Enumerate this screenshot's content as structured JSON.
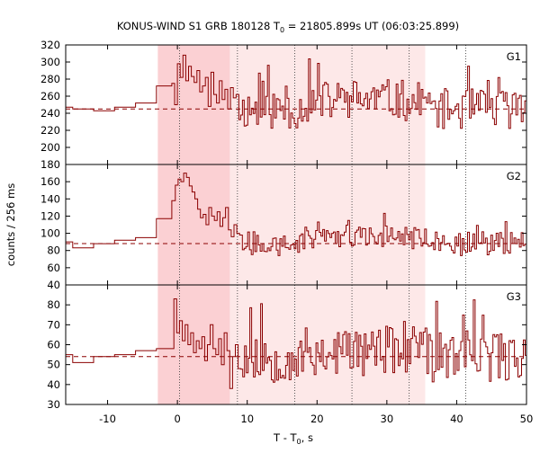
{
  "chart_data": {
    "type": "line",
    "title": "KONUS-WIND S1 GRB 180128 T",
    "title_sub": "0",
    "title_rest": " = 21805.899s UT (06:03:25.899)",
    "xlabel_main": "T - T",
    "xlabel_sub": "0",
    "xlabel_end": ", s",
    "ylabel": "counts / 256 ms",
    "xlim": [
      -16,
      50
    ],
    "x_ticks": [
      -10,
      0,
      10,
      20,
      30,
      40,
      50
    ],
    "shaded_intervals": [
      {
        "from": -2.8,
        "to": 35.5,
        "color": "#fde8e8"
      },
      {
        "from": -2.8,
        "to": 7.5,
        "color": "#fbd0d3"
      }
    ],
    "dotted_verticals": [
      0.3,
      8.6,
      16.8,
      25.0,
      33.2,
      41.3
    ],
    "line_color": "#8b0000",
    "panels": [
      {
        "label": "G1",
        "ylim": [
          180,
          320
        ],
        "y_ticks": [
          200,
          220,
          240,
          260,
          280,
          300,
          320
        ],
        "background": 245,
        "pre_burst": [
          {
            "x0": -16,
            "x1": -15,
            "y": 247
          },
          {
            "x0": -15,
            "x1": -12,
            "y": 245
          },
          {
            "x0": -12,
            "x1": -9,
            "y": 243
          },
          {
            "x0": -9,
            "x1": -6,
            "y": 247
          },
          {
            "x0": -6,
            "x1": -3,
            "y": 252
          },
          {
            "x0": -3,
            "x1": -0.8,
            "y": 272
          }
        ],
        "peak": [
          275,
          250,
          298,
          282,
          308,
          278,
          295,
          283,
          276,
          290,
          265,
          272,
          282,
          248,
          288,
          262,
          252,
          278,
          256,
          268,
          245,
          270,
          258,
          262
        ],
        "noise_amp": 24,
        "late_bump": 12,
        "seed": 11
      },
      {
        "label": "G2",
        "ylim": [
          40,
          180
        ],
        "y_ticks": [
          40,
          60,
          80,
          100,
          120,
          140,
          160,
          180
        ],
        "background": 88,
        "pre_burst": [
          {
            "x0": -16,
            "x1": -15,
            "y": 90
          },
          {
            "x0": -15,
            "x1": -12,
            "y": 83
          },
          {
            "x0": -12,
            "x1": -9,
            "y": 88
          },
          {
            "x0": -9,
            "x1": -6,
            "y": 92
          },
          {
            "x0": -6,
            "x1": -3,
            "y": 95
          },
          {
            "x0": -3,
            "x1": -0.8,
            "y": 117
          },
          {
            "x0": -0.8,
            "x1": -0.3,
            "y": 138
          }
        ],
        "peak": [
          156,
          163,
          160,
          170,
          165,
          155,
          148,
          140,
          128,
          118,
          122,
          110,
          130,
          120,
          115,
          125,
          108,
          118,
          130,
          104,
          96,
          110,
          100,
          98
        ],
        "noise_amp": 14,
        "late_bump": 10,
        "seed": 27
      },
      {
        "label": "G3",
        "ylim": [
          30,
          90
        ],
        "y_ticks": [
          30,
          40,
          50,
          60,
          70,
          80
        ],
        "background": 54,
        "pre_burst": [
          {
            "x0": -16,
            "x1": -15,
            "y": 55
          },
          {
            "x0": -15,
            "x1": -12,
            "y": 51
          },
          {
            "x0": -12,
            "x1": -9,
            "y": 54
          },
          {
            "x0": -9,
            "x1": -6,
            "y": 55
          },
          {
            "x0": -6,
            "x1": -3,
            "y": 57
          },
          {
            "x0": -3,
            "x1": -0.5,
            "y": 58
          }
        ],
        "peak": [
          83,
          66,
          72,
          62,
          70,
          60,
          66,
          56,
          62,
          58,
          64,
          52,
          60,
          70,
          58,
          55,
          63,
          50,
          66,
          57,
          38,
          54,
          60,
          48
        ],
        "noise_amp": 13,
        "late_bump": 3,
        "seed": 53
      }
    ]
  }
}
